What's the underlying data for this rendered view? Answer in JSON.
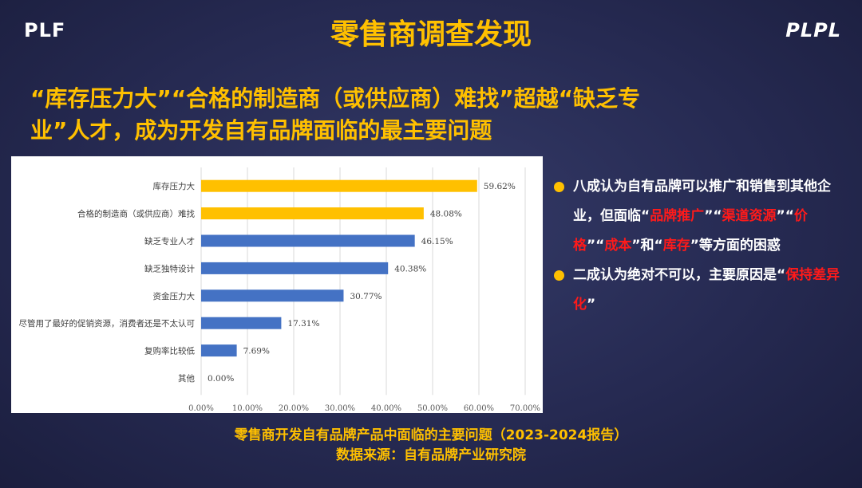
{
  "brand": {
    "left_logo": "PLF",
    "right_logo": "PLPL"
  },
  "title": "零售商调查发现",
  "headline": {
    "line1": "“库存压力大”“合格的制造商（或供应商）难找”超越“缺乏专",
    "line2": "业”人才，成为开发自有品牌面临的最主要问题"
  },
  "colors": {
    "background": "#262a52",
    "accent": "#ffc000",
    "highlight_red": "#ff1a1a",
    "bar_yellow": "#ffc000",
    "bar_blue": "#4472c4"
  },
  "chart_data": {
    "type": "bar",
    "orientation": "horizontal",
    "categories": [
      "库存压力大",
      "合格的制造商（或供应商）难找",
      "缺乏专业人才",
      "缺乏独特设计",
      "资金压力大",
      "尽管用了最好的促销资源，消费者还是不太认可",
      "复购率比较低",
      "其他"
    ],
    "values": [
      59.62,
      48.08,
      46.15,
      40.38,
      30.77,
      17.31,
      7.69,
      0.0
    ],
    "value_labels": [
      "59.62%",
      "48.08%",
      "46.15%",
      "40.38%",
      "30.77%",
      "17.31%",
      "7.69%",
      "0.00%"
    ],
    "bar_colors": [
      "#ffc000",
      "#ffc000",
      "#4472c4",
      "#4472c4",
      "#4472c4",
      "#4472c4",
      "#4472c4",
      "#4472c4"
    ],
    "xlim": [
      0,
      70
    ],
    "xticks": [
      0,
      10,
      20,
      30,
      40,
      50,
      60,
      70
    ],
    "xtick_labels": [
      "0.00%",
      "10.00%",
      "20.00%",
      "30.00%",
      "40.00%",
      "50.00%",
      "60.00%",
      "70.00%"
    ],
    "grid": "vertical"
  },
  "bullets": [
    {
      "segments": [
        {
          "text": "八成认为自有品牌可以推广和销售到其他企业，但面临“",
          "hl": false
        },
        {
          "text": "品牌推广",
          "hl": true
        },
        {
          "text": "”“",
          "hl": false
        },
        {
          "text": "渠道资源",
          "hl": true
        },
        {
          "text": "”“",
          "hl": false
        },
        {
          "text": "价格",
          "hl": true
        },
        {
          "text": "”“",
          "hl": false
        },
        {
          "text": "成本",
          "hl": true
        },
        {
          "text": "”和“",
          "hl": false
        },
        {
          "text": "库存",
          "hl": true
        },
        {
          "text": "”等方面的困惑",
          "hl": false
        }
      ]
    },
    {
      "segments": [
        {
          "text": "二成认为绝对不可以，主要原因是“",
          "hl": false
        },
        {
          "text": "保持差异化",
          "hl": true
        },
        {
          "text": "”",
          "hl": false
        }
      ]
    }
  ],
  "caption": {
    "line1": "零售商开发自有品牌产品中面临的主要问题（2023-2024报告）",
    "line2": "数据来源：自有品牌产业研究院"
  }
}
